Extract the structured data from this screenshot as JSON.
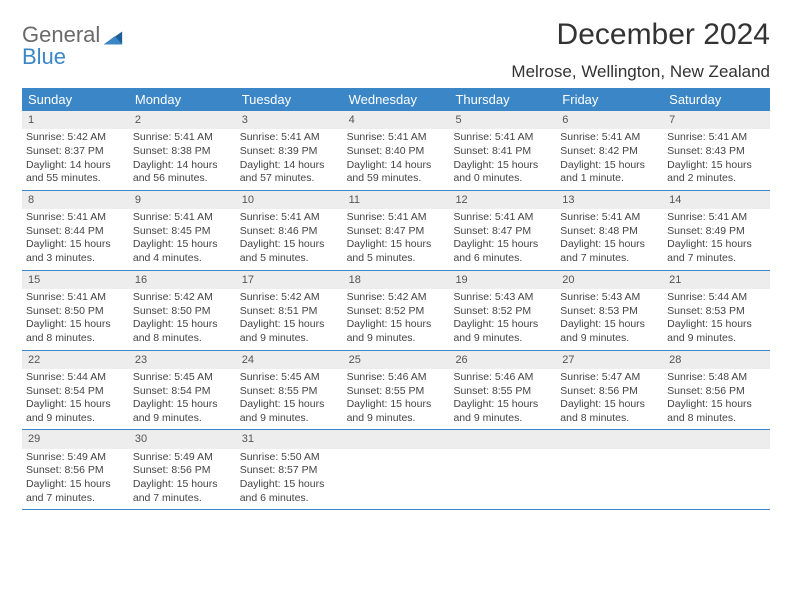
{
  "logo": {
    "word1": "General",
    "word2": "Blue"
  },
  "title": "December 2024",
  "location": "Melrose, Wellington, New Zealand",
  "colors": {
    "header_bg": "#3b86c6",
    "header_text": "#ffffff",
    "daynum_bg": "#ededed",
    "rule": "#3b86c6",
    "body_text": "#444444",
    "title_text": "#333333"
  },
  "weekdays": [
    "Sunday",
    "Monday",
    "Tuesday",
    "Wednesday",
    "Thursday",
    "Friday",
    "Saturday"
  ],
  "days": [
    {
      "n": "1",
      "sunrise": "Sunrise: 5:42 AM",
      "sunset": "Sunset: 8:37 PM",
      "day1": "Daylight: 14 hours",
      "day2": "and 55 minutes."
    },
    {
      "n": "2",
      "sunrise": "Sunrise: 5:41 AM",
      "sunset": "Sunset: 8:38 PM",
      "day1": "Daylight: 14 hours",
      "day2": "and 56 minutes."
    },
    {
      "n": "3",
      "sunrise": "Sunrise: 5:41 AM",
      "sunset": "Sunset: 8:39 PM",
      "day1": "Daylight: 14 hours",
      "day2": "and 57 minutes."
    },
    {
      "n": "4",
      "sunrise": "Sunrise: 5:41 AM",
      "sunset": "Sunset: 8:40 PM",
      "day1": "Daylight: 14 hours",
      "day2": "and 59 minutes."
    },
    {
      "n": "5",
      "sunrise": "Sunrise: 5:41 AM",
      "sunset": "Sunset: 8:41 PM",
      "day1": "Daylight: 15 hours",
      "day2": "and 0 minutes."
    },
    {
      "n": "6",
      "sunrise": "Sunrise: 5:41 AM",
      "sunset": "Sunset: 8:42 PM",
      "day1": "Daylight: 15 hours",
      "day2": "and 1 minute."
    },
    {
      "n": "7",
      "sunrise": "Sunrise: 5:41 AM",
      "sunset": "Sunset: 8:43 PM",
      "day1": "Daylight: 15 hours",
      "day2": "and 2 minutes."
    },
    {
      "n": "8",
      "sunrise": "Sunrise: 5:41 AM",
      "sunset": "Sunset: 8:44 PM",
      "day1": "Daylight: 15 hours",
      "day2": "and 3 minutes."
    },
    {
      "n": "9",
      "sunrise": "Sunrise: 5:41 AM",
      "sunset": "Sunset: 8:45 PM",
      "day1": "Daylight: 15 hours",
      "day2": "and 4 minutes."
    },
    {
      "n": "10",
      "sunrise": "Sunrise: 5:41 AM",
      "sunset": "Sunset: 8:46 PM",
      "day1": "Daylight: 15 hours",
      "day2": "and 5 minutes."
    },
    {
      "n": "11",
      "sunrise": "Sunrise: 5:41 AM",
      "sunset": "Sunset: 8:47 PM",
      "day1": "Daylight: 15 hours",
      "day2": "and 5 minutes."
    },
    {
      "n": "12",
      "sunrise": "Sunrise: 5:41 AM",
      "sunset": "Sunset: 8:47 PM",
      "day1": "Daylight: 15 hours",
      "day2": "and 6 minutes."
    },
    {
      "n": "13",
      "sunrise": "Sunrise: 5:41 AM",
      "sunset": "Sunset: 8:48 PM",
      "day1": "Daylight: 15 hours",
      "day2": "and 7 minutes."
    },
    {
      "n": "14",
      "sunrise": "Sunrise: 5:41 AM",
      "sunset": "Sunset: 8:49 PM",
      "day1": "Daylight: 15 hours",
      "day2": "and 7 minutes."
    },
    {
      "n": "15",
      "sunrise": "Sunrise: 5:41 AM",
      "sunset": "Sunset: 8:50 PM",
      "day1": "Daylight: 15 hours",
      "day2": "and 8 minutes."
    },
    {
      "n": "16",
      "sunrise": "Sunrise: 5:42 AM",
      "sunset": "Sunset: 8:50 PM",
      "day1": "Daylight: 15 hours",
      "day2": "and 8 minutes."
    },
    {
      "n": "17",
      "sunrise": "Sunrise: 5:42 AM",
      "sunset": "Sunset: 8:51 PM",
      "day1": "Daylight: 15 hours",
      "day2": "and 9 minutes."
    },
    {
      "n": "18",
      "sunrise": "Sunrise: 5:42 AM",
      "sunset": "Sunset: 8:52 PM",
      "day1": "Daylight: 15 hours",
      "day2": "and 9 minutes."
    },
    {
      "n": "19",
      "sunrise": "Sunrise: 5:43 AM",
      "sunset": "Sunset: 8:52 PM",
      "day1": "Daylight: 15 hours",
      "day2": "and 9 minutes."
    },
    {
      "n": "20",
      "sunrise": "Sunrise: 5:43 AM",
      "sunset": "Sunset: 8:53 PM",
      "day1": "Daylight: 15 hours",
      "day2": "and 9 minutes."
    },
    {
      "n": "21",
      "sunrise": "Sunrise: 5:44 AM",
      "sunset": "Sunset: 8:53 PM",
      "day1": "Daylight: 15 hours",
      "day2": "and 9 minutes."
    },
    {
      "n": "22",
      "sunrise": "Sunrise: 5:44 AM",
      "sunset": "Sunset: 8:54 PM",
      "day1": "Daylight: 15 hours",
      "day2": "and 9 minutes."
    },
    {
      "n": "23",
      "sunrise": "Sunrise: 5:45 AM",
      "sunset": "Sunset: 8:54 PM",
      "day1": "Daylight: 15 hours",
      "day2": "and 9 minutes."
    },
    {
      "n": "24",
      "sunrise": "Sunrise: 5:45 AM",
      "sunset": "Sunset: 8:55 PM",
      "day1": "Daylight: 15 hours",
      "day2": "and 9 minutes."
    },
    {
      "n": "25",
      "sunrise": "Sunrise: 5:46 AM",
      "sunset": "Sunset: 8:55 PM",
      "day1": "Daylight: 15 hours",
      "day2": "and 9 minutes."
    },
    {
      "n": "26",
      "sunrise": "Sunrise: 5:46 AM",
      "sunset": "Sunset: 8:55 PM",
      "day1": "Daylight: 15 hours",
      "day2": "and 9 minutes."
    },
    {
      "n": "27",
      "sunrise": "Sunrise: 5:47 AM",
      "sunset": "Sunset: 8:56 PM",
      "day1": "Daylight: 15 hours",
      "day2": "and 8 minutes."
    },
    {
      "n": "28",
      "sunrise": "Sunrise: 5:48 AM",
      "sunset": "Sunset: 8:56 PM",
      "day1": "Daylight: 15 hours",
      "day2": "and 8 minutes."
    },
    {
      "n": "29",
      "sunrise": "Sunrise: 5:49 AM",
      "sunset": "Sunset: 8:56 PM",
      "day1": "Daylight: 15 hours",
      "day2": "and 7 minutes."
    },
    {
      "n": "30",
      "sunrise": "Sunrise: 5:49 AM",
      "sunset": "Sunset: 8:56 PM",
      "day1": "Daylight: 15 hours",
      "day2": "and 7 minutes."
    },
    {
      "n": "31",
      "sunrise": "Sunrise: 5:50 AM",
      "sunset": "Sunset: 8:57 PM",
      "day1": "Daylight: 15 hours",
      "day2": "and 6 minutes."
    }
  ],
  "calendar": {
    "first_weekday_index": 0,
    "total_cells": 35
  }
}
